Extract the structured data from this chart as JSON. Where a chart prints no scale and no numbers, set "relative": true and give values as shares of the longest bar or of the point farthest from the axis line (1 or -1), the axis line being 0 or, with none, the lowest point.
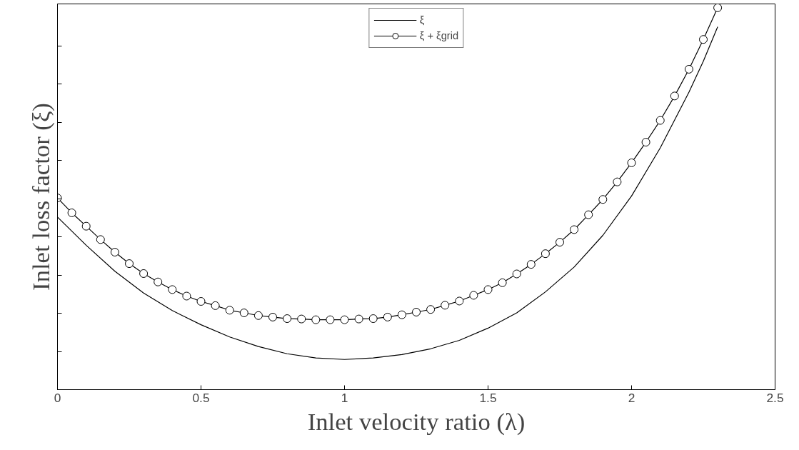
{
  "chart_data": {
    "type": "line",
    "relative": true,
    "xlabel": "Inlet velocity ratio (λ)",
    "ylabel": "Inlet loss factor (ξ)",
    "xlim": [
      0,
      2.5
    ],
    "xticks": [
      0,
      0.5,
      1,
      1.5,
      2,
      2.5
    ],
    "grid": false,
    "legend": "top",
    "tick_labels": "x",
    "series": [
      {
        "name": "ξ",
        "color": "#000000",
        "marker": "none",
        "x": [
          0,
          0.1,
          0.2,
          0.3,
          0.4,
          0.5,
          0.6,
          0.7,
          0.8,
          0.9,
          1.0,
          1.1,
          1.2,
          1.3,
          1.4,
          1.5,
          1.6,
          1.7,
          1.8,
          1.9,
          2.0,
          2.1,
          2.2,
          2.25,
          2.3
        ],
        "values": [
          0.452,
          0.378,
          0.31,
          0.253,
          0.207,
          0.17,
          0.138,
          0.113,
          0.094,
          0.083,
          0.079,
          0.083,
          0.092,
          0.107,
          0.129,
          0.161,
          0.201,
          0.256,
          0.321,
          0.404,
          0.507,
          0.633,
          0.779,
          0.86,
          0.95
        ]
      },
      {
        "name": "ξ + ξgrid",
        "color": "#000000",
        "marker": "circle",
        "x": [
          0,
          0.05,
          0.1,
          0.15,
          0.2,
          0.25,
          0.3,
          0.35,
          0.4,
          0.45,
          0.5,
          0.55,
          0.6,
          0.65,
          0.7,
          0.75,
          0.8,
          0.85,
          0.9,
          0.95,
          1.0,
          1.05,
          1.1,
          1.15,
          1.2,
          1.25,
          1.3,
          1.35,
          1.4,
          1.45,
          1.5,
          1.55,
          1.6,
          1.65,
          1.7,
          1.75,
          1.8,
          1.85,
          1.9,
          1.95,
          2.0,
          2.05,
          2.1,
          2.15,
          2.2,
          2.25,
          2.3
        ],
        "values": [
          0.502,
          0.463,
          0.428,
          0.393,
          0.36,
          0.33,
          0.304,
          0.282,
          0.262,
          0.245,
          0.231,
          0.22,
          0.208,
          0.201,
          0.194,
          0.19,
          0.186,
          0.185,
          0.183,
          0.183,
          0.183,
          0.185,
          0.186,
          0.19,
          0.196,
          0.203,
          0.21,
          0.221,
          0.232,
          0.247,
          0.262,
          0.28,
          0.303,
          0.328,
          0.356,
          0.386,
          0.419,
          0.458,
          0.498,
          0.544,
          0.594,
          0.648,
          0.705,
          0.769,
          0.839,
          0.917,
          1.0
        ]
      }
    ]
  }
}
